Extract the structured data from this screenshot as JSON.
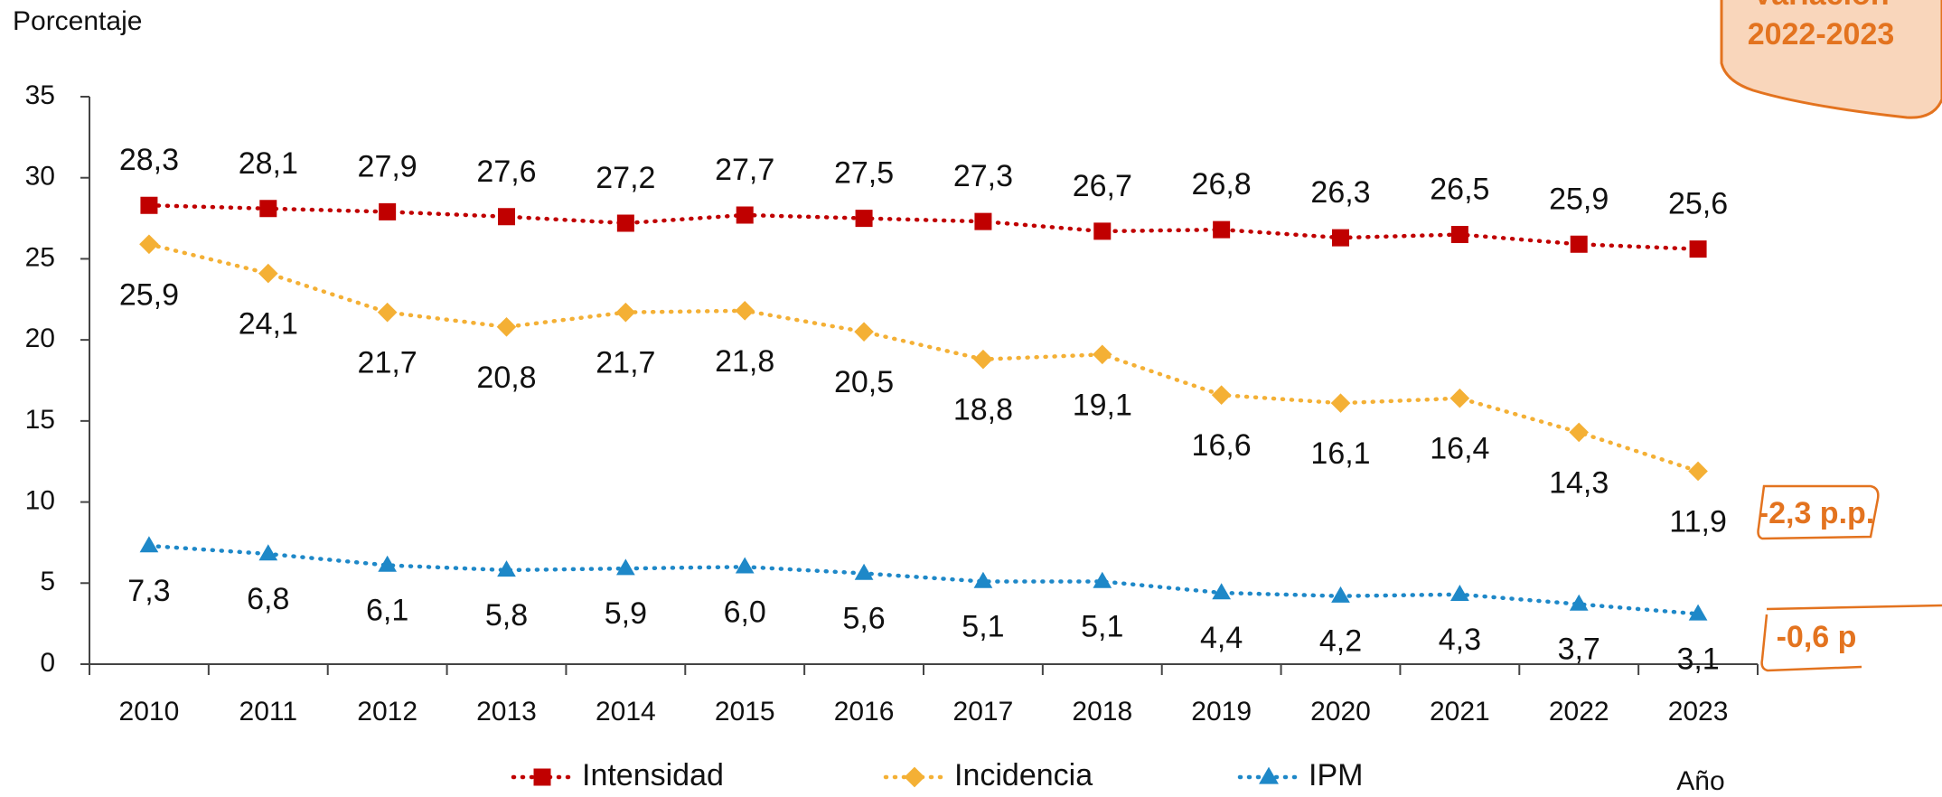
{
  "chart_data": {
    "type": "line",
    "y_axis_label": "Porcentaje",
    "x_axis_label": "Año",
    "categories": [
      "2010",
      "2011",
      "2012",
      "2013",
      "2014",
      "2015",
      "2016",
      "2017",
      "2018",
      "2019",
      "2020",
      "2021",
      "2022",
      "2023"
    ],
    "series": [
      {
        "name": "Intensidad",
        "color": "#c00000",
        "marker": "square",
        "values": [
          28.3,
          28.1,
          27.9,
          27.6,
          27.2,
          27.7,
          27.5,
          27.3,
          26.7,
          26.8,
          26.3,
          26.5,
          25.9,
          25.6
        ],
        "value_labels": [
          "28,3",
          "28,1",
          "27,9",
          "27,6",
          "27,2",
          "27,7",
          "27,5",
          "27,3",
          "26,7",
          "26,8",
          "26,3",
          "26,5",
          "25,9",
          "25,6"
        ]
      },
      {
        "name": "Incidencia",
        "color": "#f4b035",
        "marker": "diamond",
        "values": [
          25.9,
          24.1,
          21.7,
          20.8,
          21.7,
          21.8,
          20.5,
          18.8,
          19.1,
          16.6,
          16.1,
          16.4,
          14.3,
          11.9
        ],
        "value_labels": [
          "25,9",
          "24,1",
          "21,7",
          "20,8",
          "21,7",
          "21,8",
          "20,5",
          "18,8",
          "19,1",
          "16,6",
          "16,1",
          "16,4",
          "14,3",
          "11,9"
        ]
      },
      {
        "name": "IPM",
        "color": "#1e88c8",
        "marker": "triangle",
        "values": [
          7.3,
          6.8,
          6.1,
          5.8,
          5.9,
          6.0,
          5.6,
          5.1,
          5.1,
          4.4,
          4.2,
          4.3,
          3.7,
          3.1
        ],
        "value_labels": [
          "7,3",
          "6,8",
          "6,1",
          "5,8",
          "5,9",
          "6,0",
          "5,6",
          "5,1",
          "5,1",
          "4,4",
          "4,2",
          "4,3",
          "3,7",
          "3,1"
        ]
      }
    ],
    "ylim": [
      0,
      35
    ],
    "yticks": [
      0,
      5,
      10,
      15,
      20,
      25,
      30,
      35
    ],
    "annotations": [
      "Variación",
      "2022-2023",
      "-2,3 p.p.",
      "-0,6 p"
    ]
  }
}
